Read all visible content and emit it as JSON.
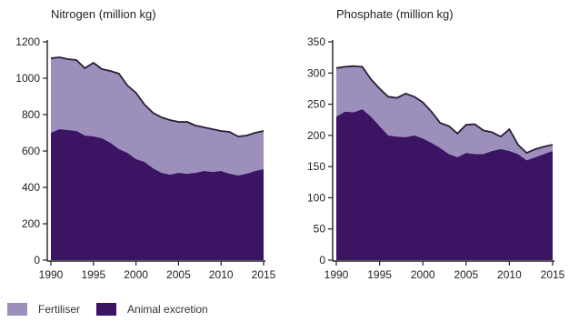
{
  "colors": {
    "fertiliser": "#9d8fbc",
    "animal_excretion": "#3b1463",
    "total_line": "#2a1d33"
  },
  "legend": {
    "fertiliser": "Fertiliser",
    "animal_excretion": "Animal excretion"
  },
  "chart_data": [
    {
      "type": "area",
      "stacked": true,
      "title": "Nitrogen (million kg)",
      "x": [
        1990,
        1991,
        1992,
        1993,
        1994,
        1995,
        1996,
        1997,
        1998,
        1999,
        2000,
        2001,
        2002,
        2003,
        2004,
        2005,
        2006,
        2007,
        2008,
        2009,
        2010,
        2011,
        2012,
        2013,
        2014,
        2015
      ],
      "xticks": [
        "1990",
        "1995",
        "2000",
        "2005",
        "2010",
        "2015"
      ],
      "ylim": [
        0,
        1200
      ],
      "yticks": [
        "0",
        "200",
        "400",
        "600",
        "800",
        "1000",
        "1200"
      ],
      "series": [
        {
          "name": "Animal excretion",
          "values": [
            700,
            720,
            715,
            710,
            685,
            680,
            670,
            645,
            610,
            590,
            555,
            540,
            505,
            480,
            470,
            480,
            475,
            480,
            490,
            485,
            490,
            475,
            465,
            475,
            490,
            500
          ]
        },
        {
          "name": "Fertiliser",
          "values": [
            410,
            395,
            390,
            390,
            370,
            405,
            380,
            395,
            415,
            370,
            365,
            315,
            305,
            305,
            300,
            280,
            285,
            260,
            240,
            235,
            220,
            230,
            215,
            210,
            210,
            210
          ]
        }
      ],
      "total": [
        1110,
        1115,
        1105,
        1100,
        1055,
        1085,
        1050,
        1040,
        1025,
        960,
        920,
        855,
        810,
        785,
        770,
        760,
        760,
        740,
        730,
        720,
        710,
        705,
        680,
        685,
        700,
        710
      ]
    },
    {
      "type": "area",
      "stacked": true,
      "title": "Phosphate (million kg)",
      "x": [
        1990,
        1991,
        1992,
        1993,
        1994,
        1995,
        1996,
        1997,
        1998,
        1999,
        2000,
        2001,
        2002,
        2003,
        2004,
        2005,
        2006,
        2007,
        2008,
        2009,
        2010,
        2011,
        2012,
        2013,
        2014,
        2015
      ],
      "xticks": [
        "1990",
        "1995",
        "2000",
        "2005",
        "2010",
        "2015"
      ],
      "ylim": [
        0,
        350
      ],
      "yticks": [
        "0",
        "50",
        "100",
        "150",
        "200",
        "250",
        "300",
        "350"
      ],
      "series": [
        {
          "name": "Animal excretion",
          "values": [
            230,
            238,
            237,
            242,
            230,
            215,
            200,
            198,
            197,
            200,
            195,
            188,
            180,
            170,
            165,
            172,
            170,
            170,
            175,
            178,
            175,
            170,
            160,
            165,
            170,
            175
          ]
        },
        {
          "name": "Fertiliser",
          "values": [
            78,
            72,
            74,
            68,
            60,
            60,
            62,
            62,
            70,
            62,
            58,
            50,
            40,
            45,
            38,
            45,
            48,
            38,
            30,
            20,
            35,
            15,
            12,
            13,
            12,
            10
          ]
        }
      ],
      "total": [
        308,
        310,
        311,
        310,
        290,
        275,
        262,
        260,
        267,
        262,
        253,
        238,
        220,
        215,
        203,
        217,
        218,
        208,
        205,
        198,
        210,
        185,
        172,
        178,
        182,
        185
      ]
    }
  ]
}
